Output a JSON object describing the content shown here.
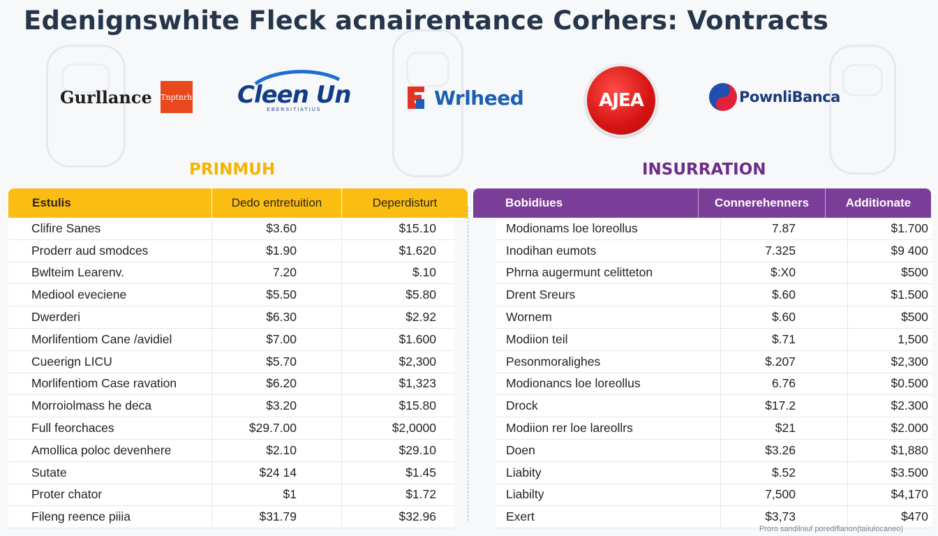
{
  "title": "Edenignswhite Fleck acnairentance Corhers: Vontracts",
  "logos": {
    "gurllance": {
      "word": "Gurllance",
      "tag": "Tnptnrh"
    },
    "cleen": {
      "word": "Cleen Un",
      "sub": "EBERSITIATIUS"
    },
    "wrlheed": {
      "word": "Wrlheed"
    },
    "ajea": {
      "word": "AJEA"
    },
    "pownli": {
      "word": "PownliBanca"
    }
  },
  "left": {
    "label": "PRINMUH",
    "header": [
      "Estulis",
      "Dedo entretuition",
      "Deperdisturt"
    ],
    "rows": [
      [
        "Clifire Sanes",
        "$3.60",
        "$15.10"
      ],
      [
        "Proderr aud smodces",
        "$1.90",
        "$1.620"
      ],
      [
        "Bwlteim Learenv.",
        "7.20",
        "$.10"
      ],
      [
        "Mediool eveciene",
        "$5.50",
        "$5.80"
      ],
      [
        "Dwerderi",
        "$6.30",
        "$2.92"
      ],
      [
        "Morlifentiom Cane /avidiel",
        "$7.00",
        "$1.600"
      ],
      [
        "Cueerign LICU",
        "$5.70",
        "$2,300"
      ],
      [
        "Morlifentiom Case ravation",
        "$6.20",
        "$1,323"
      ],
      [
        "Morroiolmass he deca",
        "$3.20",
        "$15.80"
      ],
      [
        "Full feorchaces",
        "$29.7.00",
        "$2,0000"
      ],
      [
        "Amollica poloc devenhere",
        "$2.10",
        "$29.10"
      ],
      [
        "Sutate",
        "$24 14",
        "$1.45"
      ],
      [
        "Proter chator",
        "$1",
        "$1.72"
      ],
      [
        "Fileng reence piiia",
        "$31.79",
        "$32.96"
      ]
    ]
  },
  "right": {
    "label": "INSURRATION",
    "header": [
      "Bobidiues",
      "Connerehenners",
      "Additionate"
    ],
    "rows": [
      [
        "Modionams loe loreollus",
        "7.87",
        "$1.700"
      ],
      [
        "Inodihan eumots",
        "7.325",
        "$9 400"
      ],
      [
        "Phrna augermunt celitteton",
        "$:X0",
        "$500"
      ],
      [
        "Drent Sreurs",
        "$.60",
        "$1.500"
      ],
      [
        "Wornem",
        "$.60",
        "$500"
      ],
      [
        "Modiion teil",
        "$.71",
        "1,500"
      ],
      [
        "Pesonmoralighes",
        "$.207",
        "$2,300"
      ],
      [
        "Modionancs loe loreollus",
        "6.76",
        "$0.500"
      ],
      [
        "Drock",
        "$17.2",
        "$2.300"
      ],
      [
        "Modiion rer loe lareollrs",
        "$21",
        "$2.000"
      ],
      [
        "Doen",
        "$3.26",
        "$1,880"
      ],
      [
        "Liabity",
        "$.52",
        "$3.500"
      ],
      [
        "Liabilty",
        "7,500",
        "$4,170"
      ],
      [
        "Exert",
        "$3,73",
        "$470"
      ]
    ]
  },
  "footnote": "Proro sandilniuf porediflanon(taiiulocaneo)",
  "colors": {
    "left_header": "#fbbd12",
    "right_header": "#7a3e99",
    "left_label": "#f5b400",
    "right_label": "#6c2c8a",
    "title": "#26354a"
  }
}
